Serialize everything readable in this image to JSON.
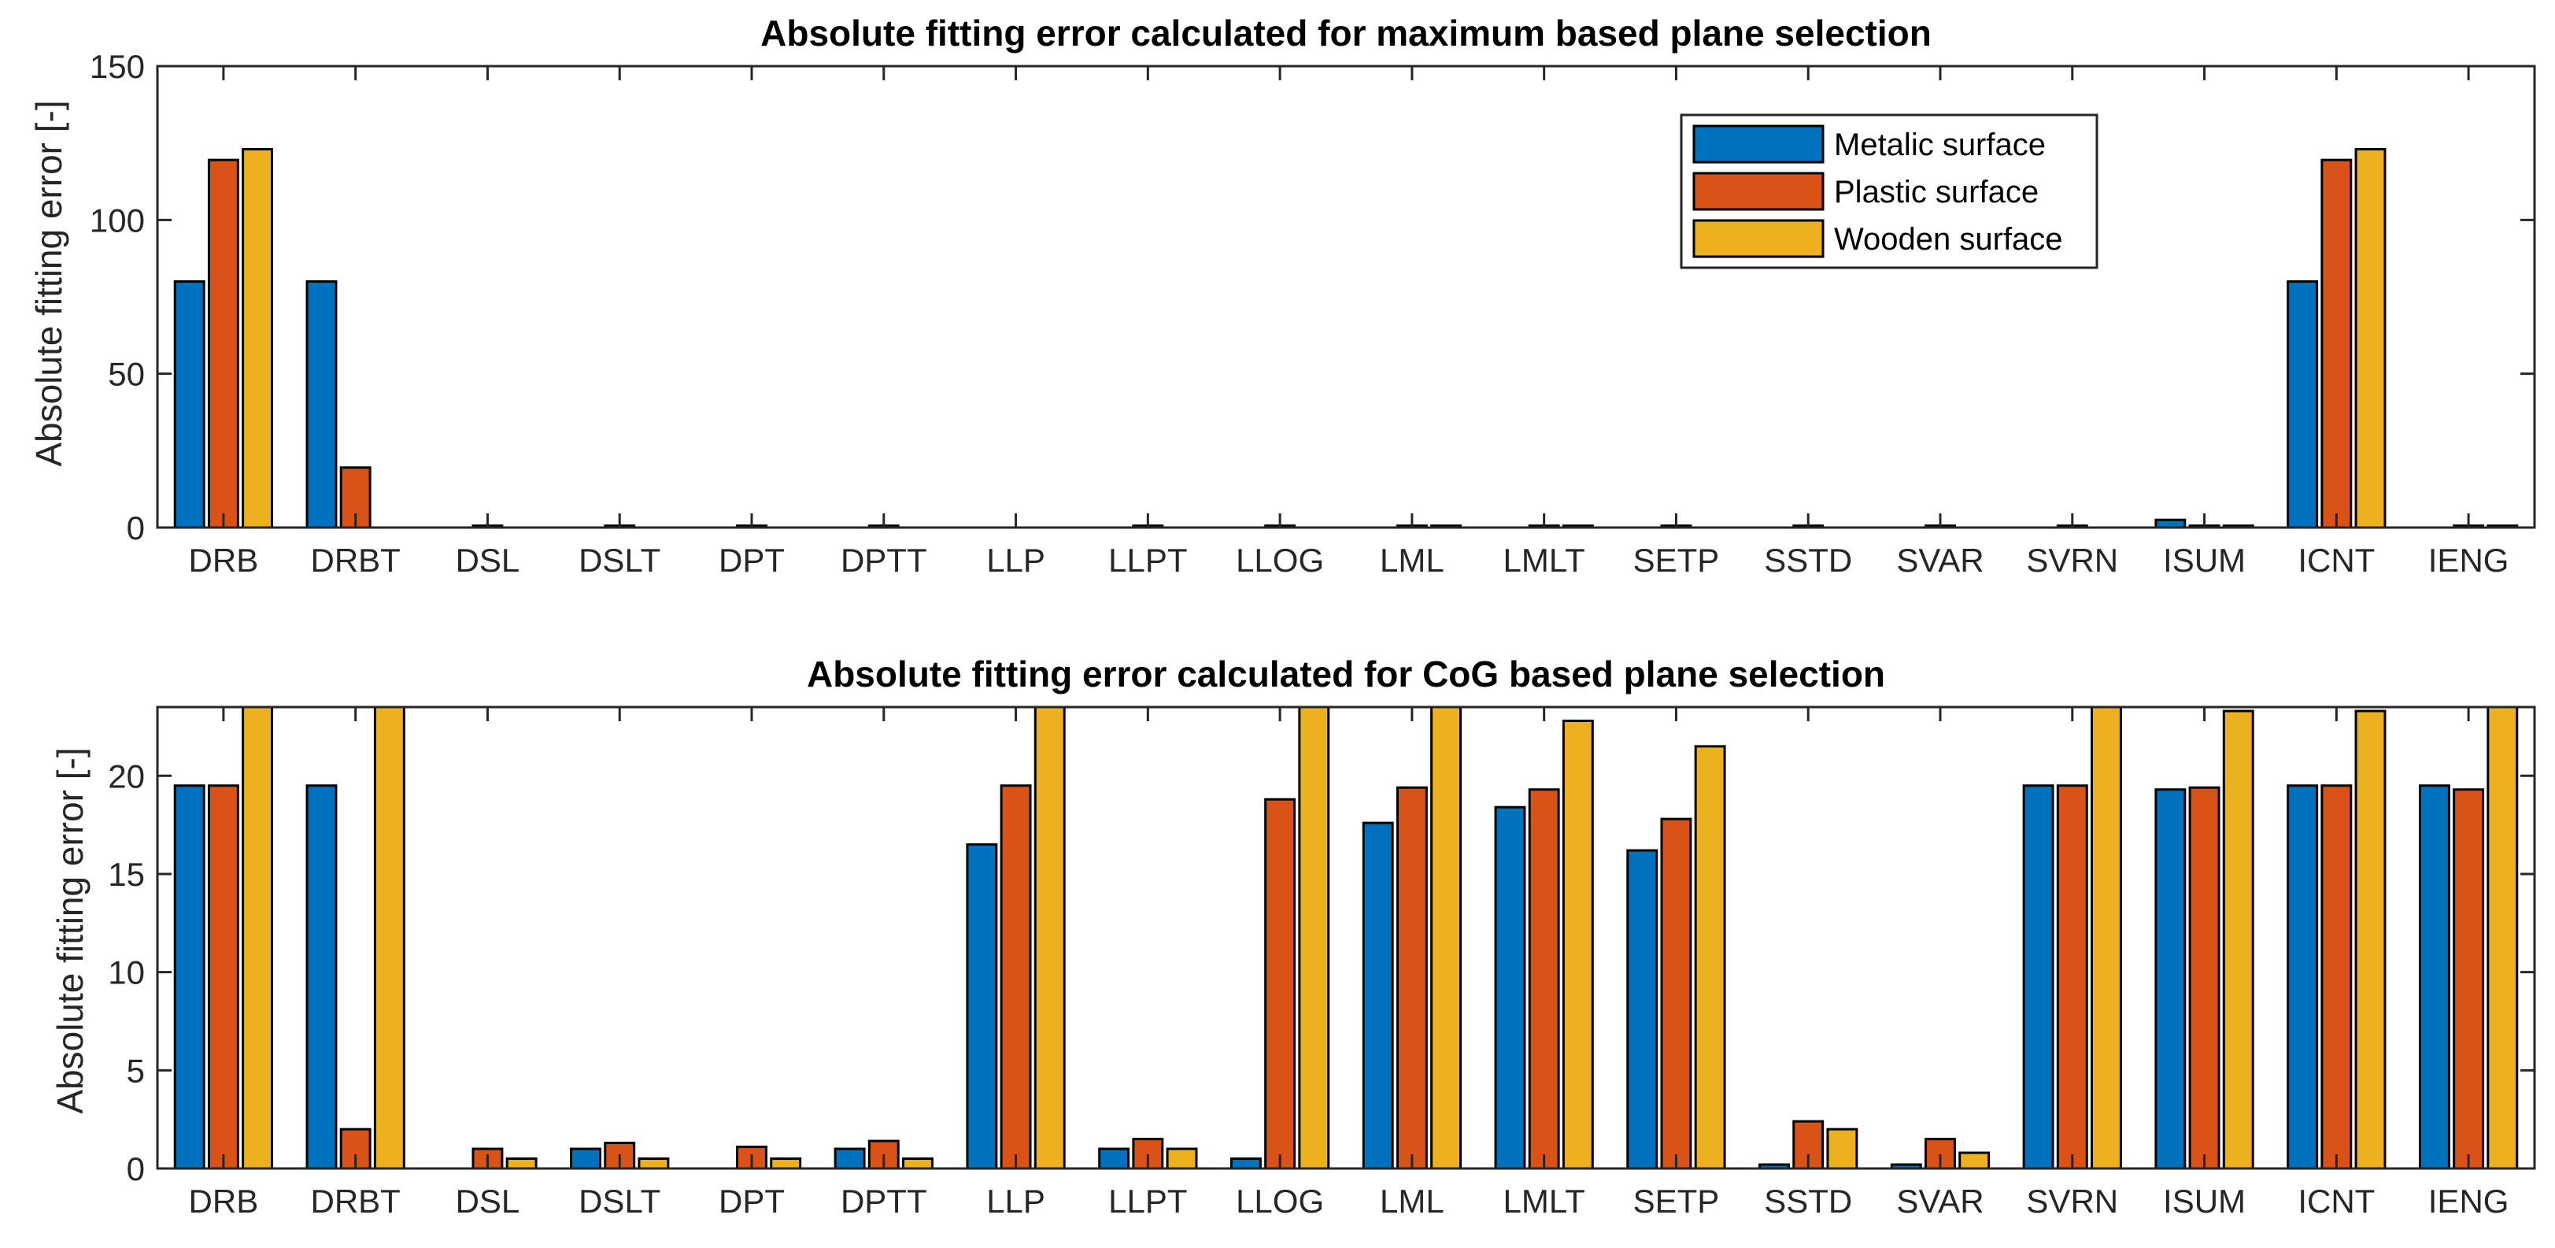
{
  "chart_data": [
    {
      "type": "bar",
      "title": "Absolute fitting error calculated for maximum based plane selection",
      "xlabel": "",
      "ylabel": "Absolute fitting error [-]",
      "ylim": [
        0,
        150
      ],
      "yticks": [
        0,
        50,
        100,
        150
      ],
      "grid": false,
      "legend_position": "top-right",
      "categories": [
        "DRB",
        "DRBT",
        "DSL",
        "DSLT",
        "DPT",
        "DPTT",
        "LLP",
        "LLPT",
        "LLOG",
        "LML",
        "LMLT",
        "SETP",
        "SSTD",
        "SVAR",
        "SVRN",
        "ISUM",
        "ICNT",
        "IENG"
      ],
      "series": [
        {
          "name": "Metalic surface",
          "color": "#0072BD",
          "values": [
            80,
            80,
            0,
            0,
            0,
            0,
            0,
            0,
            0,
            0,
            0,
            0,
            0,
            0,
            0,
            2.5,
            80,
            0
          ]
        },
        {
          "name": "Plastic surface",
          "color": "#D95319",
          "values": [
            119.5,
            19.5,
            0.6,
            0.6,
            0.6,
            0.6,
            0,
            0.6,
            0.6,
            0.6,
            0.6,
            0.6,
            0.6,
            0.6,
            0.6,
            0.6,
            119.5,
            0.6
          ]
        },
        {
          "name": "Wooden surface",
          "color": "#EDB120",
          "values": [
            123,
            0,
            0,
            0,
            0,
            0,
            0,
            0,
            0,
            0.6,
            0.6,
            0,
            0,
            0,
            0,
            0.6,
            123,
            0.6
          ]
        }
      ]
    },
    {
      "type": "bar",
      "title": "Absolute fitting error calculated for CoG based plane selection",
      "xlabel": "",
      "ylabel": "Absolute fitting error [-]",
      "ylim": [
        0,
        23.5
      ],
      "yticks": [
        0,
        5,
        10,
        15,
        20
      ],
      "grid": false,
      "categories": [
        "DRB",
        "DRBT",
        "DSL",
        "DSLT",
        "DPT",
        "DPTT",
        "LLP",
        "LLPT",
        "LLOG",
        "LML",
        "LMLT",
        "SETP",
        "SSTD",
        "SVAR",
        "SVRN",
        "ISUM",
        "ICNT",
        "IENG"
      ],
      "series": [
        {
          "name": "Metalic surface",
          "color": "#0072BD",
          "values": [
            19.5,
            19.5,
            0,
            1,
            0,
            1,
            16.5,
            1,
            0.5,
            17.6,
            18.4,
            16.2,
            0.2,
            0.2,
            19.5,
            19.3,
            19.5,
            19.5
          ]
        },
        {
          "name": "Plastic surface",
          "color": "#D95319",
          "values": [
            19.5,
            2,
            1,
            1.3,
            1.1,
            1.4,
            19.5,
            1.5,
            18.8,
            19.4,
            19.3,
            17.8,
            2.4,
            1.5,
            19.5,
            19.4,
            19.5,
            19.3
          ]
        },
        {
          "name": "Wooden surface",
          "color": "#EDB120",
          "values": [
            24,
            24,
            0.5,
            0.5,
            0.5,
            0.5,
            24,
            1,
            24,
            24,
            22.8,
            21.5,
            2,
            0.8,
            24,
            23.3,
            23.3,
            24
          ]
        }
      ]
    }
  ]
}
